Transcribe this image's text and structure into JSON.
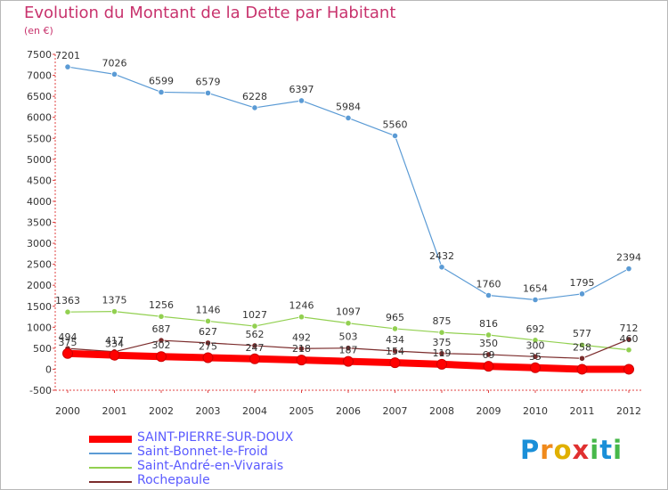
{
  "title": "Evolution du Montant de la Dette par Habitant",
  "subtitle": "(en €)",
  "logo": "Proxiti",
  "chart_data": {
    "type": "line",
    "x": [
      "2000",
      "2001",
      "2002",
      "2003",
      "2004",
      "2005",
      "2006",
      "2007",
      "2008",
      "2009",
      "2010",
      "2011",
      "2012"
    ],
    "ylim": [
      -500,
      7500
    ],
    "yticks": [
      -500,
      0,
      500,
      1000,
      1500,
      2000,
      2500,
      3000,
      3500,
      4000,
      4500,
      5000,
      5500,
      6000,
      6500,
      7000,
      7500
    ],
    "grid": false,
    "legend_position": "bottom-left",
    "series": [
      {
        "name": "SAINT-PIERRE-SUR-DOUX",
        "color": "#ff0000",
        "values": [
          375,
          334,
          302,
          275,
          247,
          218,
          187,
          154,
          119,
          69,
          35,
          0,
          0
        ],
        "labels": [
          "375",
          "334",
          "302",
          "275",
          "247",
          "218",
          "187",
          "154",
          "119",
          "69",
          "35",
          "",
          ""
        ]
      },
      {
        "name": "Saint-Bonnet-le-Froid",
        "color": "#5b9bd5",
        "values": [
          7201,
          7026,
          6599,
          6579,
          6228,
          6397,
          5984,
          5560,
          2432,
          1760,
          1654,
          1795,
          2394
        ],
        "labels": [
          "7201",
          "7026",
          "6599",
          "6579",
          "6228",
          "6397",
          "5984",
          "5560",
          "2432",
          "1760",
          "1654",
          "1795",
          "2394"
        ]
      },
      {
        "name": "Saint-André-en-Vivarais",
        "color": "#92d050",
        "values": [
          1363,
          1375,
          1256,
          1146,
          1027,
          1246,
          1097,
          965,
          875,
          816,
          692,
          577,
          460
        ],
        "labels": [
          "1363",
          "1375",
          "1256",
          "1146",
          "1027",
          "1246",
          "1097",
          "965",
          "875",
          "816",
          "692",
          "577",
          "460"
        ]
      },
      {
        "name": "Rochepaule",
        "color": "#7b2c2c",
        "values": [
          494,
          417,
          687,
          627,
          562,
          492,
          503,
          434,
          375,
          350,
          300,
          258,
          712
        ],
        "labels": [
          "494",
          "417",
          "687",
          "627",
          "562",
          "492",
          "503",
          "434",
          "375",
          "350",
          "300",
          "258",
          "712"
        ]
      }
    ]
  }
}
